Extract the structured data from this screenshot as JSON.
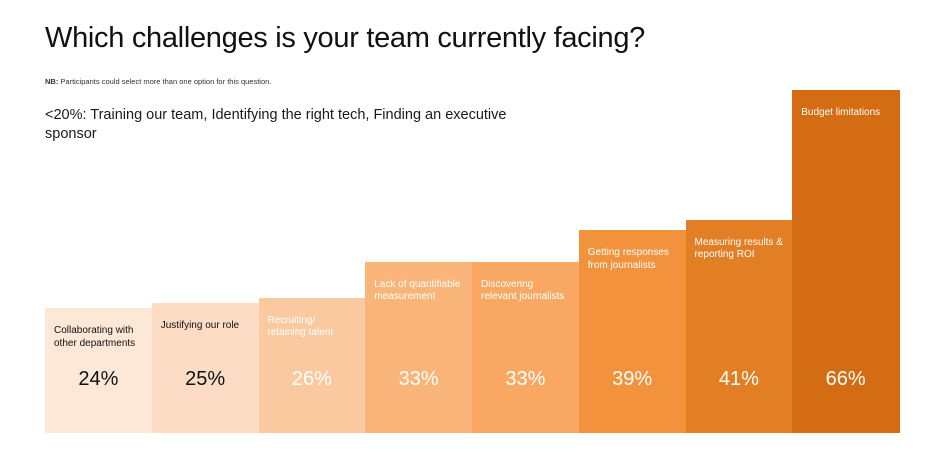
{
  "header": {
    "title": "Which challenges is your team currently facing?",
    "note_prefix": "NB:",
    "note_text": " Participants could select more than one option for this question.",
    "subtitle": "<20%: Training our team, Identifying the right tech, Finding an executive sponsor"
  },
  "chart_data": {
    "type": "bar",
    "categories": [
      "Collaborating with other departments",
      "Justifying our role",
      "Recruiting/ retaining talent",
      "Lack of quantifiable measurement",
      "Discovering relevant journalists",
      "Getting responses from journalists",
      "Measuring results & reporting ROI",
      "Budget limitations"
    ],
    "values": [
      24,
      25,
      26,
      33,
      33,
      39,
      41,
      66
    ],
    "value_labels": [
      "24%",
      "25%",
      "26%",
      "33%",
      "33%",
      "39%",
      "41%",
      "66%"
    ],
    "bar_colors": [
      "#fde7d6",
      "#fcdcc4",
      "#fbc99f",
      "#f9b479",
      "#f8a862",
      "#f2923c",
      "#e27f25",
      "#d46c13"
    ],
    "text_colors": [
      "#111111",
      "#111111",
      "#ffffff",
      "#ffffff",
      "#ffffff",
      "#ffffff",
      "#ffffff",
      "#ffffff"
    ],
    "ylim": [
      0,
      66
    ],
    "grid": false
  }
}
